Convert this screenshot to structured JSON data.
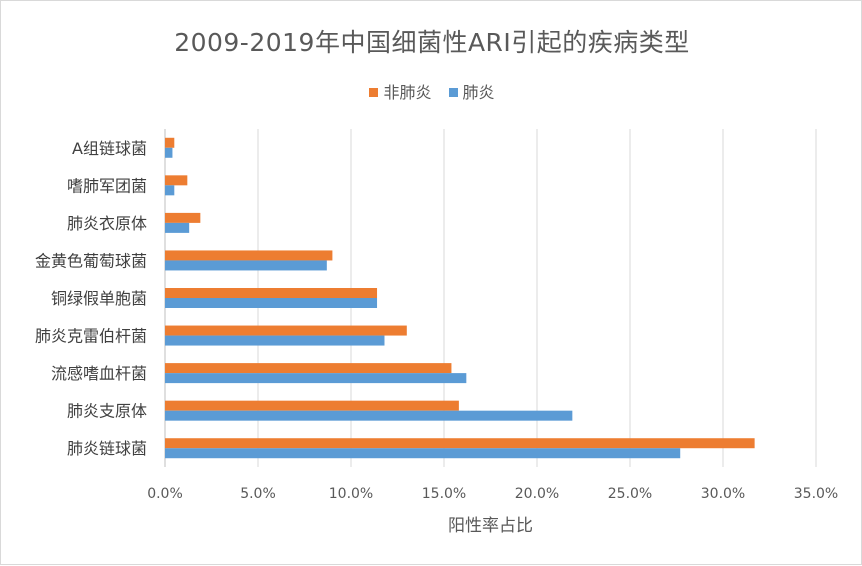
{
  "chart_data": {
    "type": "bar",
    "orientation": "horizontal",
    "title": "2009-2019年中国细菌性ARI引起的疾病类型",
    "xlabel": "阳性率占比",
    "ylabel": "",
    "categories": [
      "A组链球菌",
      "嗜肺军团菌",
      "肺炎衣原体",
      "金黄色葡萄球菌",
      "铜绿假单胞菌",
      "肺炎克雷伯杆菌",
      "流感嗜血杆菌",
      "肺炎支原体",
      "肺炎链球菌"
    ],
    "series": [
      {
        "name": "非肺炎",
        "color": "#ed7d31",
        "values": [
          0.5,
          1.2,
          1.9,
          9.0,
          11.4,
          13.0,
          15.4,
          15.8,
          31.7
        ]
      },
      {
        "name": "肺炎",
        "color": "#5b9bd5",
        "values": [
          0.4,
          0.5,
          1.3,
          8.7,
          11.4,
          11.8,
          16.2,
          21.9,
          27.7
        ]
      }
    ],
    "xlim": [
      0,
      35
    ],
    "xticks": [
      "0.0%",
      "5.0%",
      "10.0%",
      "15.0%",
      "20.0%",
      "25.0%",
      "30.0%",
      "35.0%"
    ],
    "grid": true,
    "legend_position": "top"
  }
}
